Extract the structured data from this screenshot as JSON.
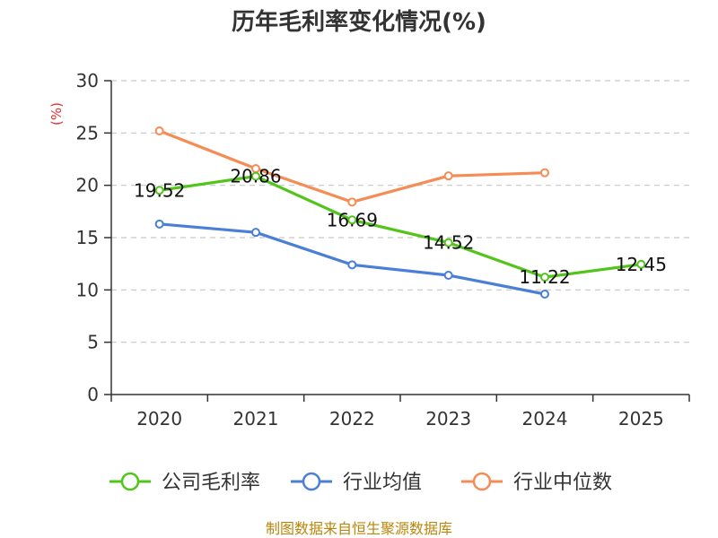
{
  "chart_data": {
    "type": "line",
    "title": "历年毛利率变化情况(%)",
    "ylabel": "(%)",
    "xlabel": "",
    "categories": [
      "2020",
      "2021",
      "2022",
      "2023",
      "2024",
      "2025"
    ],
    "ylim": [
      0,
      30
    ],
    "yticks": [
      0,
      5,
      10,
      15,
      20,
      25,
      30
    ],
    "grid": true,
    "legend_position": "bottom",
    "series": [
      {
        "name": "公司毛利率",
        "color": "#52c41a",
        "values": [
          19.52,
          20.86,
          16.69,
          14.52,
          11.22,
          12.45
        ],
        "labels": [
          "19.52",
          "20.86",
          "16.69",
          "14.52",
          "11.22",
          "12.45"
        ]
      },
      {
        "name": "行业均值",
        "color": "#4a7fd8",
        "values": [
          16.3,
          15.5,
          12.4,
          11.4,
          9.6,
          null
        ]
      },
      {
        "name": "行业中位数",
        "color": "#f58c55",
        "values": [
          25.2,
          21.6,
          18.4,
          20.9,
          21.2,
          null
        ]
      }
    ],
    "source": "制图数据来自恒生聚源数据库"
  }
}
